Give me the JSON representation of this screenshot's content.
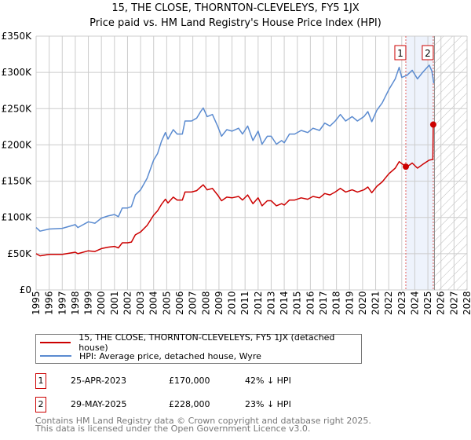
{
  "chart_data": {
    "type": "line",
    "title": "15, THE CLOSE, THORNTON-CLEVELEYS, FY5 1JX",
    "subtitle": "Price paid vs. HM Land Registry's House Price Index (HPI)",
    "xlim": [
      1995,
      2028
    ],
    "ylim": [
      0,
      350000
    ],
    "x_ticks": [
      "1995",
      "1996",
      "1997",
      "1998",
      "1999",
      "2000",
      "2001",
      "2002",
      "2003",
      "2004",
      "2005",
      "2006",
      "2007",
      "2008",
      "2009",
      "2010",
      "2011",
      "2012",
      "2013",
      "2014",
      "2015",
      "2016",
      "2017",
      "2018",
      "2019",
      "2020",
      "2021",
      "2022",
      "2023",
      "2024",
      "2025",
      "2026",
      "2027",
      "2028"
    ],
    "y_ticks": [
      {
        "v": 0,
        "label": "£0"
      },
      {
        "v": 50000,
        "label": "£50K"
      },
      {
        "v": 100000,
        "label": "£100K"
      },
      {
        "v": 150000,
        "label": "£150K"
      },
      {
        "v": 200000,
        "label": "£200K"
      },
      {
        "v": 250000,
        "label": "£250K"
      },
      {
        "v": 300000,
        "label": "£300K"
      },
      {
        "v": 350000,
        "label": "£350K"
      }
    ],
    "grid": true,
    "series": [
      {
        "name": "15, THE CLOSE, THORNTON-CLEVELEYS, FY5 1JX (detached house)",
        "color": "#cc0000",
        "x": [
          1995,
          1995.3,
          1996,
          1997,
          1998,
          1998.2,
          1999,
          1999.5,
          2000,
          2000.5,
          2001,
          2001.3,
          2001.6,
          2002,
          2002.3,
          2002.6,
          2003,
          2003.5,
          2004,
          2004.3,
          2004.6,
          2004.9,
          2005.1,
          2005.5,
          2005.8,
          2006.2,
          2006.4,
          2006.9,
          2007.3,
          2007.6,
          2007.8,
          2008.1,
          2008.5,
          2008.9,
          2009.2,
          2009.6,
          2010,
          2010.5,
          2010.8,
          2011.2,
          2011.6,
          2012,
          2012.3,
          2012.7,
          2013,
          2013.4,
          2013.8,
          2014,
          2014.4,
          2014.8,
          2015.3,
          2015.8,
          2016.2,
          2016.7,
          2017.1,
          2017.5,
          2017.9,
          2018.3,
          2018.7,
          2019.2,
          2019.6,
          2020.1,
          2020.4,
          2020.7,
          2021.1,
          2021.5,
          2022,
          2022.5,
          2022.8,
          2023.31,
          2023.5,
          2023.8,
          2024.2,
          2024.6,
          2025.1,
          2025.38,
          2025.41
        ],
        "values": [
          50000,
          47000,
          49000,
          49000,
          52000,
          50000,
          54000,
          53000,
          57000,
          59000,
          60000,
          58000,
          65000,
          65000,
          66000,
          76000,
          80000,
          89000,
          103000,
          109000,
          118000,
          125000,
          120000,
          128000,
          124000,
          124000,
          135000,
          135000,
          137000,
          142000,
          145000,
          138000,
          140000,
          131000,
          123000,
          128000,
          127000,
          129000,
          124000,
          131000,
          119000,
          127000,
          116000,
          123000,
          123000,
          116000,
          119000,
          117000,
          124000,
          124000,
          127000,
          125000,
          129000,
          127000,
          133000,
          131000,
          135000,
          140000,
          135000,
          138000,
          135000,
          138000,
          142000,
          134000,
          143000,
          149000,
          160000,
          168000,
          177000,
          170000,
          171000,
          175000,
          168000,
          173000,
          179000,
          180000,
          228000
        ]
      },
      {
        "name": "HPI: Average price, detached house, Wyre",
        "color": "#5b8bd0",
        "x": [
          1995,
          1995.3,
          1996,
          1997,
          1998,
          1998.2,
          1999,
          1999.5,
          2000,
          2000.5,
          2001,
          2001.3,
          2001.6,
          2002,
          2002.3,
          2002.6,
          2003,
          2003.5,
          2004,
          2004.3,
          2004.6,
          2004.9,
          2005.1,
          2005.5,
          2005.8,
          2006.2,
          2006.4,
          2006.9,
          2007.3,
          2007.6,
          2007.8,
          2008.1,
          2008.5,
          2008.9,
          2009.2,
          2009.6,
          2010,
          2010.5,
          2010.8,
          2011.2,
          2011.6,
          2012,
          2012.3,
          2012.7,
          2013,
          2013.4,
          2013.8,
          2014,
          2014.4,
          2014.8,
          2015.3,
          2015.8,
          2016.2,
          2016.7,
          2017.1,
          2017.5,
          2017.9,
          2018.3,
          2018.7,
          2019.2,
          2019.6,
          2020.1,
          2020.4,
          2020.7,
          2021.1,
          2021.5,
          2022,
          2022.5,
          2022.8,
          2023.0,
          2023.4,
          2023.8,
          2024.2,
          2024.6,
          2025.1,
          2025.3,
          2025.45
        ],
        "values": [
          86000,
          81000,
          84000,
          85000,
          90000,
          86000,
          94000,
          92000,
          99000,
          102000,
          104000,
          101000,
          113000,
          113000,
          115000,
          131000,
          138000,
          154000,
          179000,
          188000,
          205000,
          217000,
          208000,
          221000,
          215000,
          215000,
          233000,
          233000,
          237000,
          246000,
          251000,
          239000,
          242000,
          226000,
          212000,
          221000,
          219000,
          223000,
          215000,
          226000,
          206000,
          219000,
          201000,
          212000,
          212000,
          201000,
          206000,
          203000,
          215000,
          215000,
          220000,
          217000,
          223000,
          220000,
          230000,
          226000,
          233000,
          242000,
          233000,
          239000,
          233000,
          239000,
          246000,
          232000,
          248000,
          258000,
          276000,
          291000,
          307000,
          293000,
          296000,
          303000,
          291000,
          300000,
          310000,
          302000,
          285000
        ]
      }
    ],
    "sales": [
      {
        "id": "1",
        "x": 2023.31,
        "value": 170000,
        "date": "25-APR-2023",
        "price": "£170,000",
        "hpi_diff": "42% ↓ HPI"
      },
      {
        "id": "2",
        "x": 2025.41,
        "value": 228000,
        "date": "29-MAY-2025",
        "price": "£228,000",
        "hpi_diff": "23% ↓ HPI"
      }
    ],
    "forecast_start": 2025.5,
    "legend_placement": "below"
  },
  "footer": {
    "line1": "Contains HM Land Registry data © Crown copyright and database right 2025.",
    "line2": "This data is licensed under the Open Government Licence v3.0."
  }
}
